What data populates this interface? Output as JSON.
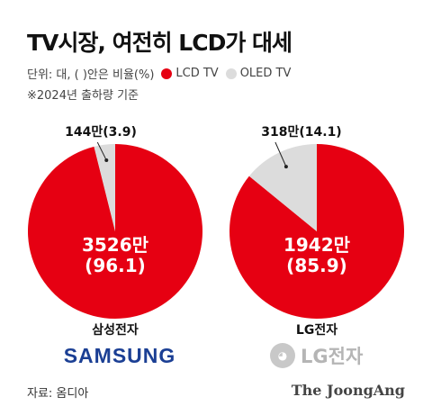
{
  "header": {
    "title": "TV시장, 여전히 LCD가 대세",
    "unit_label": "단위: 대, ( )안은 비율(%)",
    "note": "※2024년 출하량 기준"
  },
  "legend": [
    {
      "label": "LCD TV",
      "color": "#e60012"
    },
    {
      "label": "OLED TV",
      "color": "#dcdcdc"
    }
  ],
  "chart_data": [
    {
      "type": "pie",
      "company": "삼성전자",
      "logo": "SAMSUNG",
      "slices": [
        {
          "name": "LCD TV",
          "percent": 96.1,
          "units_label": "3526만",
          "pct_label": "(96.1)",
          "color": "#e60012"
        },
        {
          "name": "OLED TV",
          "percent": 3.9,
          "units_label": "144만(3.9)",
          "color": "#dcdcdc"
        }
      ]
    },
    {
      "type": "pie",
      "company": "LG전자",
      "logo": "LG전자",
      "slices": [
        {
          "name": "LCD TV",
          "percent": 85.9,
          "units_label": "1942만",
          "pct_label": "(85.9)",
          "color": "#e60012"
        },
        {
          "name": "OLED TV",
          "percent": 14.1,
          "units_label": "318만(14.1)",
          "color": "#dcdcdc"
        }
      ]
    }
  ],
  "footer": {
    "source": "자료: 옴디아",
    "brand": "The JoongAng"
  }
}
